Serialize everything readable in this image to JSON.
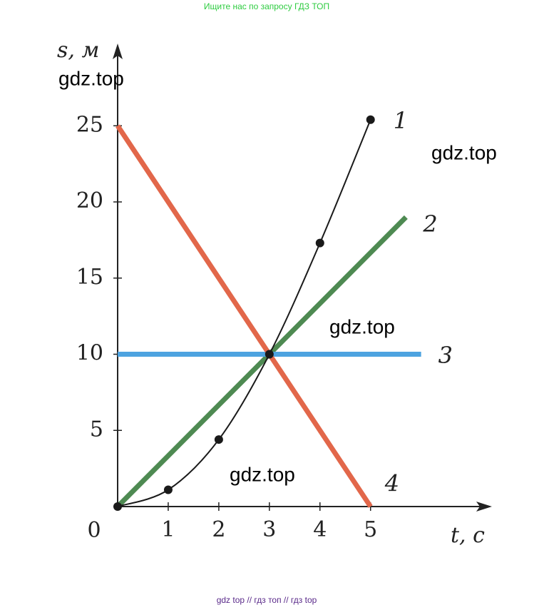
{
  "header": "Ищите нас по запросу ГДЗ ТОП",
  "footer": "gdz top  //  гдз топ  //  гдз top",
  "watermarks": [
    "gdz.top",
    "gdz.top",
    "gdz.top",
    "gdz.top"
  ],
  "chart_data": {
    "type": "line",
    "x_label": "t, с",
    "y_label": "s, м",
    "origin_label": "0",
    "xlim": [
      0,
      7.4
    ],
    "ylim": [
      0,
      30.4
    ],
    "xticks": [
      1,
      2,
      3,
      4,
      5
    ],
    "yticks": [
      5,
      10,
      15,
      20,
      25
    ],
    "series": [
      {
        "name": "1",
        "color": "#1a1a1a",
        "markers": true,
        "x": [
          0,
          1,
          2,
          3,
          4,
          5
        ],
        "values": [
          0,
          1.1,
          4.4,
          10,
          17.3,
          25.4
        ]
      },
      {
        "name": "2",
        "color": "#4e8a52",
        "markers": false,
        "x": [
          0,
          5.7
        ],
        "values": [
          0,
          19
        ]
      },
      {
        "name": "3",
        "color": "#4da3e0",
        "markers": false,
        "x": [
          0,
          6
        ],
        "values": [
          10,
          10
        ]
      },
      {
        "name": "4",
        "color": "#e2674a",
        "markers": false,
        "x": [
          0,
          5
        ],
        "values": [
          25,
          0
        ]
      }
    ]
  }
}
